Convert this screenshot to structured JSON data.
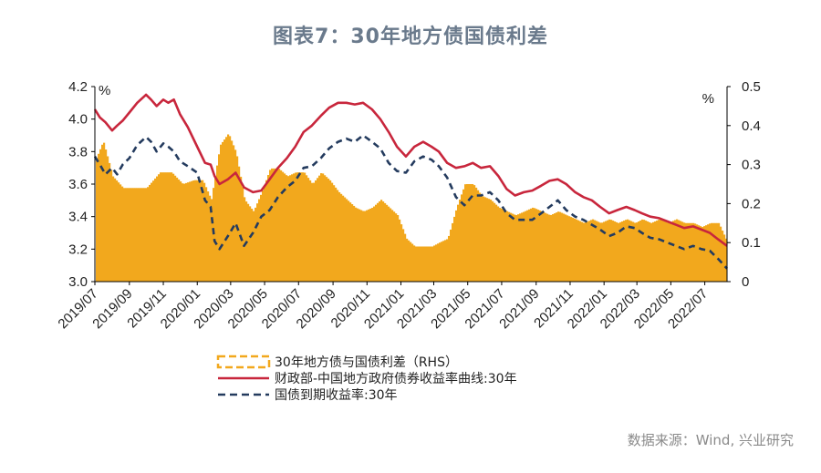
{
  "title": "图表7：30年地方债国债利差",
  "source": "数据来源：Wind, 兴业研究",
  "chart_data": {
    "type": "bar+line",
    "left_axis": {
      "unit": "%",
      "ylim": [
        3.0,
        4.2
      ],
      "ticks": [
        "3.0",
        "3.2",
        "3.4",
        "3.6",
        "3.8",
        "4.0",
        "4.2"
      ]
    },
    "right_axis": {
      "unit": "%",
      "ylim": [
        0,
        0.5
      ],
      "ticks": [
        "0",
        "0.1",
        "0.2",
        "0.3",
        "0.4",
        "0.5"
      ]
    },
    "x_ticks": [
      "2019/07",
      "2019/09",
      "2019/11",
      "2020/01",
      "2020/03",
      "2020/05",
      "2020/07",
      "2020/09",
      "2020/11",
      "2021/01",
      "2021/03",
      "2021/05",
      "2021/07",
      "2021/09",
      "2021/11",
      "2022/01",
      "2022/03",
      "2022/05",
      "2022/07"
    ],
    "x_range": [
      "2019-07-01",
      "2022-08-10"
    ],
    "grid": false,
    "legend_position": "bottom-left",
    "colors": {
      "spread": "#f2a81d",
      "local": "#c8263c",
      "treasury": "#243b5e"
    },
    "series": [
      {
        "name": "30年地方债与国债利差（RHS）",
        "axis": "right",
        "style": "bar",
        "points": [
          [
            "2019-07-01",
            0.31
          ],
          [
            "2019-07-15",
            0.36
          ],
          [
            "2019-08-01",
            0.27
          ],
          [
            "2019-08-20",
            0.24
          ],
          [
            "2019-09-10",
            0.24
          ],
          [
            "2019-10-01",
            0.24
          ],
          [
            "2019-10-25",
            0.28
          ],
          [
            "2019-11-15",
            0.28
          ],
          [
            "2019-12-05",
            0.25
          ],
          [
            "2019-12-25",
            0.26
          ],
          [
            "2020-01-10",
            0.26
          ],
          [
            "2020-01-25",
            0.21
          ],
          [
            "2020-02-10",
            0.35
          ],
          [
            "2020-02-25",
            0.38
          ],
          [
            "2020-03-10",
            0.33
          ],
          [
            "2020-03-25",
            0.21
          ],
          [
            "2020-04-10",
            0.18
          ],
          [
            "2020-04-25",
            0.23
          ],
          [
            "2020-05-10",
            0.29
          ],
          [
            "2020-05-25",
            0.29
          ],
          [
            "2020-06-10",
            0.27
          ],
          [
            "2020-06-25",
            0.28
          ],
          [
            "2020-07-10",
            0.28
          ],
          [
            "2020-07-25",
            0.25
          ],
          [
            "2020-08-10",
            0.28
          ],
          [
            "2020-08-25",
            0.26
          ],
          [
            "2020-09-10",
            0.23
          ],
          [
            "2020-09-25",
            0.21
          ],
          [
            "2020-10-10",
            0.19
          ],
          [
            "2020-10-25",
            0.18
          ],
          [
            "2020-11-10",
            0.19
          ],
          [
            "2020-11-25",
            0.21
          ],
          [
            "2020-12-10",
            0.19
          ],
          [
            "2020-12-25",
            0.17
          ],
          [
            "2021-01-10",
            0.11
          ],
          [
            "2021-01-25",
            0.09
          ],
          [
            "2021-02-10",
            0.09
          ],
          [
            "2021-02-25",
            0.09
          ],
          [
            "2021-03-10",
            0.1
          ],
          [
            "2021-03-25",
            0.11
          ],
          [
            "2021-04-10",
            0.19
          ],
          [
            "2021-04-25",
            0.25
          ],
          [
            "2021-05-10",
            0.25
          ],
          [
            "2021-05-25",
            0.22
          ],
          [
            "2021-06-10",
            0.21
          ],
          [
            "2021-06-25",
            0.19
          ],
          [
            "2021-07-10",
            0.18
          ],
          [
            "2021-07-25",
            0.17
          ],
          [
            "2021-08-10",
            0.18
          ],
          [
            "2021-08-25",
            0.19
          ],
          [
            "2021-09-10",
            0.18
          ],
          [
            "2021-09-25",
            0.17
          ],
          [
            "2021-10-10",
            0.18
          ],
          [
            "2021-10-25",
            0.17
          ],
          [
            "2021-11-10",
            0.16
          ],
          [
            "2021-11-25",
            0.15
          ],
          [
            "2021-12-10",
            0.16
          ],
          [
            "2021-12-25",
            0.15
          ],
          [
            "2022-01-10",
            0.16
          ],
          [
            "2022-01-25",
            0.15
          ],
          [
            "2022-02-10",
            0.16
          ],
          [
            "2022-02-25",
            0.15
          ],
          [
            "2022-03-10",
            0.16
          ],
          [
            "2022-03-25",
            0.15
          ],
          [
            "2022-04-10",
            0.16
          ],
          [
            "2022-04-25",
            0.15
          ],
          [
            "2022-05-10",
            0.16
          ],
          [
            "2022-05-25",
            0.15
          ],
          [
            "2022-06-10",
            0.15
          ],
          [
            "2022-06-25",
            0.14
          ],
          [
            "2022-07-10",
            0.15
          ],
          [
            "2022-07-25",
            0.15
          ],
          [
            "2022-08-10",
            0.1
          ]
        ]
      },
      {
        "name": "财政部-中国地方政府债券收益率曲线:30年",
        "axis": "left",
        "style": "solid",
        "points": [
          [
            "2019-07-01",
            4.06
          ],
          [
            "2019-07-10",
            4.01
          ],
          [
            "2019-07-20",
            3.98
          ],
          [
            "2019-08-01",
            3.93
          ],
          [
            "2019-08-10",
            3.96
          ],
          [
            "2019-08-20",
            3.99
          ],
          [
            "2019-09-01",
            4.04
          ],
          [
            "2019-09-15",
            4.1
          ],
          [
            "2019-10-01",
            4.15
          ],
          [
            "2019-10-10",
            4.12
          ],
          [
            "2019-10-20",
            4.08
          ],
          [
            "2019-11-01",
            4.12
          ],
          [
            "2019-11-10",
            4.1
          ],
          [
            "2019-11-20",
            4.12
          ],
          [
            "2019-12-01",
            4.03
          ],
          [
            "2019-12-15",
            3.95
          ],
          [
            "2020-01-01",
            3.83
          ],
          [
            "2020-01-15",
            3.73
          ],
          [
            "2020-01-25",
            3.72
          ],
          [
            "2020-02-01",
            3.65
          ],
          [
            "2020-02-10",
            3.6
          ],
          [
            "2020-02-25",
            3.63
          ],
          [
            "2020-03-10",
            3.67
          ],
          [
            "2020-03-25",
            3.58
          ],
          [
            "2020-04-10",
            3.55
          ],
          [
            "2020-04-25",
            3.56
          ],
          [
            "2020-05-10",
            3.63
          ],
          [
            "2020-05-25",
            3.7
          ],
          [
            "2020-06-10",
            3.76
          ],
          [
            "2020-06-25",
            3.83
          ],
          [
            "2020-07-10",
            3.92
          ],
          [
            "2020-07-25",
            3.96
          ],
          [
            "2020-08-10",
            4.02
          ],
          [
            "2020-08-25",
            4.07
          ],
          [
            "2020-09-10",
            4.1
          ],
          [
            "2020-09-25",
            4.1
          ],
          [
            "2020-10-10",
            4.09
          ],
          [
            "2020-10-25",
            4.1
          ],
          [
            "2020-11-10",
            4.06
          ],
          [
            "2020-11-25",
            4.0
          ],
          [
            "2020-12-10",
            3.92
          ],
          [
            "2020-12-25",
            3.83
          ],
          [
            "2021-01-10",
            3.77
          ],
          [
            "2021-01-25",
            3.83
          ],
          [
            "2021-02-10",
            3.86
          ],
          [
            "2021-02-25",
            3.83
          ],
          [
            "2021-03-10",
            3.8
          ],
          [
            "2021-03-25",
            3.73
          ],
          [
            "2021-04-10",
            3.7
          ],
          [
            "2021-04-25",
            3.71
          ],
          [
            "2021-05-10",
            3.73
          ],
          [
            "2021-05-25",
            3.7
          ],
          [
            "2021-06-10",
            3.71
          ],
          [
            "2021-06-25",
            3.65
          ],
          [
            "2021-07-10",
            3.57
          ],
          [
            "2021-07-25",
            3.53
          ],
          [
            "2021-08-10",
            3.55
          ],
          [
            "2021-08-25",
            3.56
          ],
          [
            "2021-09-10",
            3.59
          ],
          [
            "2021-09-25",
            3.62
          ],
          [
            "2021-10-10",
            3.63
          ],
          [
            "2021-10-25",
            3.6
          ],
          [
            "2021-11-10",
            3.55
          ],
          [
            "2021-11-25",
            3.52
          ],
          [
            "2021-12-10",
            3.5
          ],
          [
            "2021-12-25",
            3.46
          ],
          [
            "2022-01-10",
            3.42
          ],
          [
            "2022-01-25",
            3.44
          ],
          [
            "2022-02-10",
            3.46
          ],
          [
            "2022-02-25",
            3.44
          ],
          [
            "2022-03-10",
            3.42
          ],
          [
            "2022-03-25",
            3.4
          ],
          [
            "2022-04-10",
            3.39
          ],
          [
            "2022-04-25",
            3.37
          ],
          [
            "2022-05-10",
            3.35
          ],
          [
            "2022-05-25",
            3.33
          ],
          [
            "2022-06-10",
            3.34
          ],
          [
            "2022-06-25",
            3.32
          ],
          [
            "2022-07-10",
            3.3
          ],
          [
            "2022-07-25",
            3.26
          ],
          [
            "2022-08-10",
            3.22
          ]
        ]
      },
      {
        "name": "国债到期收益率:30年",
        "axis": "left",
        "style": "dashed",
        "points": [
          [
            "2019-07-01",
            3.77
          ],
          [
            "2019-07-10",
            3.72
          ],
          [
            "2019-07-20",
            3.66
          ],
          [
            "2019-08-01",
            3.7
          ],
          [
            "2019-08-10",
            3.66
          ],
          [
            "2019-08-20",
            3.72
          ],
          [
            "2019-09-01",
            3.76
          ],
          [
            "2019-09-15",
            3.84
          ],
          [
            "2019-10-01",
            3.89
          ],
          [
            "2019-10-10",
            3.86
          ],
          [
            "2019-10-20",
            3.8
          ],
          [
            "2019-11-01",
            3.85
          ],
          [
            "2019-11-10",
            3.83
          ],
          [
            "2019-11-20",
            3.8
          ],
          [
            "2019-12-01",
            3.74
          ],
          [
            "2019-12-15",
            3.71
          ],
          [
            "2020-01-01",
            3.67
          ],
          [
            "2020-01-15",
            3.5
          ],
          [
            "2020-01-25",
            3.46
          ],
          [
            "2020-02-01",
            3.25
          ],
          [
            "2020-02-10",
            3.2
          ],
          [
            "2020-02-25",
            3.28
          ],
          [
            "2020-03-10",
            3.36
          ],
          [
            "2020-03-25",
            3.22
          ],
          [
            "2020-04-10",
            3.3
          ],
          [
            "2020-04-25",
            3.4
          ],
          [
            "2020-05-10",
            3.44
          ],
          [
            "2020-05-25",
            3.52
          ],
          [
            "2020-06-10",
            3.58
          ],
          [
            "2020-06-25",
            3.62
          ],
          [
            "2020-07-10",
            3.7
          ],
          [
            "2020-07-25",
            3.71
          ],
          [
            "2020-08-10",
            3.76
          ],
          [
            "2020-08-25",
            3.82
          ],
          [
            "2020-09-10",
            3.86
          ],
          [
            "2020-09-25",
            3.88
          ],
          [
            "2020-10-10",
            3.86
          ],
          [
            "2020-10-25",
            3.9
          ],
          [
            "2020-11-10",
            3.86
          ],
          [
            "2020-11-25",
            3.82
          ],
          [
            "2020-12-10",
            3.73
          ],
          [
            "2020-12-25",
            3.68
          ],
          [
            "2021-01-10",
            3.67
          ],
          [
            "2021-01-25",
            3.74
          ],
          [
            "2021-02-10",
            3.77
          ],
          [
            "2021-02-25",
            3.75
          ],
          [
            "2021-03-10",
            3.71
          ],
          [
            "2021-03-25",
            3.64
          ],
          [
            "2021-04-10",
            3.52
          ],
          [
            "2021-04-25",
            3.47
          ],
          [
            "2021-05-10",
            3.53
          ],
          [
            "2021-05-25",
            3.53
          ],
          [
            "2021-06-10",
            3.55
          ],
          [
            "2021-06-25",
            3.5
          ],
          [
            "2021-07-10",
            3.42
          ],
          [
            "2021-07-25",
            3.38
          ],
          [
            "2021-08-10",
            3.38
          ],
          [
            "2021-08-25",
            3.38
          ],
          [
            "2021-09-10",
            3.42
          ],
          [
            "2021-09-25",
            3.46
          ],
          [
            "2021-10-10",
            3.5
          ],
          [
            "2021-10-25",
            3.44
          ],
          [
            "2021-11-10",
            3.4
          ],
          [
            "2021-11-25",
            3.38
          ],
          [
            "2021-12-10",
            3.35
          ],
          [
            "2021-12-25",
            3.32
          ],
          [
            "2022-01-10",
            3.28
          ],
          [
            "2022-01-25",
            3.3
          ],
          [
            "2022-02-10",
            3.34
          ],
          [
            "2022-02-25",
            3.33
          ],
          [
            "2022-03-10",
            3.3
          ],
          [
            "2022-03-25",
            3.27
          ],
          [
            "2022-04-10",
            3.26
          ],
          [
            "2022-04-25",
            3.24
          ],
          [
            "2022-05-10",
            3.22
          ],
          [
            "2022-05-25",
            3.2
          ],
          [
            "2022-06-10",
            3.22
          ],
          [
            "2022-06-25",
            3.2
          ],
          [
            "2022-07-10",
            3.19
          ],
          [
            "2022-07-25",
            3.14
          ],
          [
            "2022-08-10",
            3.08
          ]
        ]
      }
    ]
  }
}
